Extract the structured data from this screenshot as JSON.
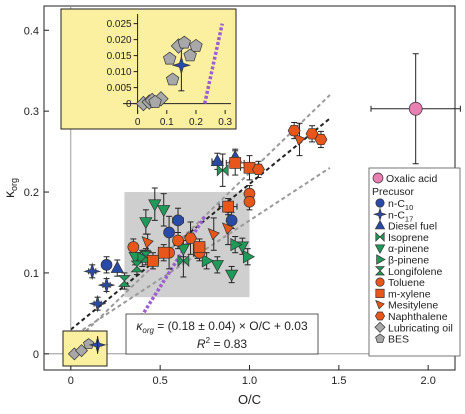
{
  "chart_data": {
    "type": "scatter",
    "xlabel": "O/C",
    "ylabel_main": "κ",
    "ylabel_sub": "org",
    "xlim": [
      -0.15,
      2.15
    ],
    "ylim": [
      -0.02,
      0.43
    ],
    "xticks": [
      0,
      0.5,
      1.0,
      1.5,
      2.0
    ],
    "xtick_labels": [
      "0",
      "0.5",
      "1.0",
      "1.5",
      "2.0"
    ],
    "yticks": [
      0,
      0.1,
      0.2,
      0.3,
      0.4
    ],
    "ytick_labels": [
      "0",
      "0.1",
      "0.2",
      "0.3",
      "0.4"
    ],
    "fit": {
      "slope": 0.18,
      "intercept": 0.03,
      "x_range": [
        0.0,
        1.45
      ]
    },
    "confidence_lines": [
      {
        "points": [
          [
            0.0,
            0.01
          ],
          [
            1.45,
            0.32
          ]
        ]
      },
      {
        "points": [
          [
            0.0,
            0.02
          ],
          [
            1.45,
            0.23
          ]
        ]
      }
    ],
    "other_line": {
      "points": [
        [
          0.32,
          0.02
        ],
        [
          0.75,
          0.17
        ]
      ]
    },
    "shaded_region": {
      "x": [
        0.3,
        1.0
      ],
      "y": [
        0.07,
        0.2
      ]
    },
    "annotation": {
      "line1_prefix": "κ",
      "line1_sub": "org",
      "line1_rest": " = (0.18 ± 0.04) × O/C + 0.03",
      "line2_prefix": "R",
      "line2_sup": "2",
      "line2_rest": " = 0.83"
    },
    "legend": {
      "header": "Oxalic acid",
      "title": "Precusor",
      "entries": [
        {
          "name": "n-C",
          "sub": "10",
          "marker": "circle",
          "color": "#2a4aa8"
        },
        {
          "name": "n-C",
          "sub": "17",
          "marker": "star4",
          "color": "#2a4aa8"
        },
        {
          "name": "Diesel fuel",
          "sub": "",
          "marker": "triangle-up",
          "color": "#2a4aa8"
        },
        {
          "name": "Isoprene",
          "sub": "",
          "marker": "bowtie",
          "color": "#1f9a58"
        },
        {
          "name": "α-pinene",
          "sub": "",
          "marker": "triangle-down",
          "color": "#1f9a58"
        },
        {
          "name": "β-pinene",
          "sub": "",
          "marker": "triangle-right",
          "color": "#1f9a58"
        },
        {
          "name": "Longifolene",
          "sub": "",
          "marker": "hourglass",
          "color": "#1f9a58"
        },
        {
          "name": "Toluene",
          "sub": "",
          "marker": "circle",
          "color": "#e8561c"
        },
        {
          "name": "m-xylene",
          "sub": "",
          "marker": "square",
          "color": "#e8561c"
        },
        {
          "name": "Mesitylene",
          "sub": "",
          "marker": "triangle-lr",
          "color": "#e8561c"
        },
        {
          "name": "Naphthalene",
          "sub": "",
          "marker": "hexagon",
          "color": "#e8561c"
        },
        {
          "name": "Lubricating oil",
          "sub": "",
          "marker": "diamond",
          "color": "#a8a8a8"
        },
        {
          "name": "BES",
          "sub": "",
          "marker": "pentagon",
          "color": "#a8a8a8"
        }
      ]
    },
    "series": [
      {
        "name": "Oxalic acid",
        "marker": "circle",
        "color": "#e97fb3",
        "points": [
          [
            1.93,
            0.303,
            0.25,
            0.068
          ]
        ]
      },
      {
        "name": "n-C10",
        "marker": "circle",
        "color": "#2a4aa8",
        "points": [
          [
            0.6,
            0.165,
            0.03,
            0.015
          ],
          [
            0.55,
            0.15,
            0,
            0.02
          ],
          [
            0.9,
            0.165,
            0,
            0.01
          ],
          [
            0.2,
            0.11,
            0,
            0.01
          ]
        ]
      },
      {
        "name": "n-C17",
        "marker": "star4",
        "color": "#2a4aa8",
        "points": [
          [
            0.15,
            0.062,
            0.02,
            0.008
          ],
          [
            0.2,
            0.085,
            0.02,
            0.008
          ],
          [
            0.12,
            0.102,
            0.02,
            0.008
          ],
          [
            0.16,
            0.011,
            0.02,
            0.008
          ]
        ]
      },
      {
        "name": "Diesel fuel",
        "marker": "triangle-up",
        "color": "#2a4aa8",
        "points": [
          [
            0.82,
            0.238,
            0.03,
            0.01
          ],
          [
            0.92,
            0.243,
            0,
            0.01
          ],
          [
            0.26,
            0.106,
            0,
            0.01
          ]
        ]
      },
      {
        "name": "Isoprene",
        "marker": "bowtie",
        "color": "#1f9a58",
        "points": [
          [
            0.85,
            0.227,
            0,
            0.02
          ],
          [
            0.63,
            0.115,
            0,
            0.02
          ]
        ]
      },
      {
        "name": "α-pinene",
        "marker": "triangle-down",
        "color": "#1f9a58",
        "points": [
          [
            0.47,
            0.185,
            0,
            0.02
          ],
          [
            0.52,
            0.178,
            0,
            0.02
          ],
          [
            0.42,
            0.163,
            0,
            0.015
          ],
          [
            0.82,
            0.11,
            0,
            0.01
          ],
          [
            0.9,
            0.098,
            0,
            0.01
          ],
          [
            0.96,
            0.133,
            0,
            0.01
          ],
          [
            0.63,
            0.13,
            0,
            0.01
          ],
          [
            0.36,
            0.12,
            0,
            0.01
          ]
        ]
      },
      {
        "name": "β-pinene",
        "marker": "triangle-right",
        "color": "#1f9a58",
        "points": [
          [
            0.99,
            0.12,
            0,
            0.01
          ],
          [
            0.71,
            0.128,
            0,
            0.01
          ],
          [
            0.92,
            0.135,
            0,
            0.01
          ],
          [
            0.76,
            0.115,
            0,
            0.01
          ],
          [
            0.4,
            0.118,
            0,
            0.01
          ]
        ]
      },
      {
        "name": "Longifolene",
        "marker": "hourglass",
        "color": "#1f9a58",
        "points": [
          [
            0.37,
            0.108,
            0,
            0.01
          ],
          [
            0.42,
            0.12,
            0,
            0.01
          ],
          [
            0.3,
            0.09,
            0,
            0.01
          ]
        ]
      },
      {
        "name": "Toluene",
        "marker": "circle",
        "color": "#e8561c",
        "points": [
          [
            1.0,
            0.198,
            0,
            0.01
          ],
          [
            1.0,
            0.188,
            0,
            0.01
          ],
          [
            0.55,
            0.125,
            0,
            0.02
          ],
          [
            0.72,
            0.125,
            0,
            0.01
          ],
          [
            0.35,
            0.132,
            0,
            0.01
          ],
          [
            0.6,
            0.14,
            0,
            0.01
          ]
        ]
      },
      {
        "name": "m-xylene",
        "marker": "square",
        "color": "#e8561c",
        "points": [
          [
            0.92,
            0.236,
            0.05,
            0.015
          ],
          [
            1.0,
            0.23,
            0.05,
            0.015
          ],
          [
            0.88,
            0.182,
            0.05,
            0.01
          ],
          [
            0.52,
            0.125,
            0.03,
            0.01
          ],
          [
            0.46,
            0.115,
            0.03,
            0.01
          ],
          [
            0.72,
            0.132,
            0.03,
            0.01
          ]
        ]
      },
      {
        "name": "Mesitylene",
        "marker": "triangle-lr",
        "color": "#e8561c",
        "points": [
          [
            1.28,
            0.265,
            0,
            0.02
          ],
          [
            0.88,
            0.155,
            0,
            0.02
          ],
          [
            0.8,
            0.148,
            0,
            0.02
          ],
          [
            0.43,
            0.138,
            0,
            0.01
          ]
        ]
      },
      {
        "name": "Naphthalene",
        "marker": "hexagon",
        "color": "#e8561c",
        "points": [
          [
            1.4,
            0.265,
            0,
            0.01
          ],
          [
            1.35,
            0.272,
            0,
            0.01
          ],
          [
            1.25,
            0.276,
            0,
            0.01
          ],
          [
            1.05,
            0.228,
            0,
            0.01
          ],
          [
            0.67,
            0.143,
            0,
            0.02
          ]
        ]
      },
      {
        "name": "Lubricating oil",
        "marker": "diamond",
        "color": "#a8a8a8",
        "points": [
          [
            0.03,
            0.003,
            0.02,
            0
          ],
          [
            0.08,
            0.006,
            0.02,
            0
          ]
        ]
      },
      {
        "name": "BES",
        "marker": "pentagon",
        "color": "#a8a8a8",
        "points": [
          [
            0.12,
            0.011,
            0,
            0
          ],
          [
            0.1,
            0.012,
            0,
            0
          ]
        ]
      }
    ],
    "inset": {
      "xlim": [
        -0.05,
        0.32
      ],
      "ylim": [
        -0.002,
        0.028
      ],
      "xticks": [
        0,
        0.1,
        0.2,
        0.3
      ],
      "xtick_labels": [
        "0",
        "0.1",
        "0.2",
        "0.3"
      ],
      "yticks": [
        0,
        0.005,
        0.01,
        0.015,
        0.02,
        0.025
      ],
      "ytick_labels": [
        "0",
        "0.005",
        "0.010",
        "0.015",
        "0.020",
        "0.025"
      ],
      "dotted_line": {
        "points": [
          [
            0.23,
            0.0
          ],
          [
            0.29,
            0.025
          ]
        ]
      },
      "series": [
        {
          "name": "n-C17",
          "marker": "star4",
          "color": "#2a4aa8",
          "points": [
            [
              0.15,
              0.012,
              0,
              0.008
            ]
          ]
        },
        {
          "name": "Lubricating oil",
          "marker": "diamond",
          "color": "#a8a8a8",
          "points": [
            [
              0.02,
              0.0,
              0,
              0
            ],
            [
              0.04,
              0.0005,
              0,
              0
            ],
            [
              0.05,
              0.001,
              0,
              0
            ],
            [
              0.08,
              0.0015,
              0,
              0
            ],
            [
              0.14,
              0.018,
              0,
              0
            ]
          ]
        },
        {
          "name": "BES",
          "marker": "pentagon",
          "color": "#a8a8a8",
          "points": [
            [
              0.12,
              0.0075,
              0,
              0
            ],
            [
              0.16,
              0.019,
              0,
              0
            ],
            [
              0.2,
              0.018,
              0,
              0
            ],
            [
              0.18,
              0.015,
              0,
              0
            ],
            [
              0.11,
              0.014,
              0,
              0
            ],
            [
              0.06,
              0.0005,
              0,
              0
            ]
          ]
        }
      ]
    }
  }
}
